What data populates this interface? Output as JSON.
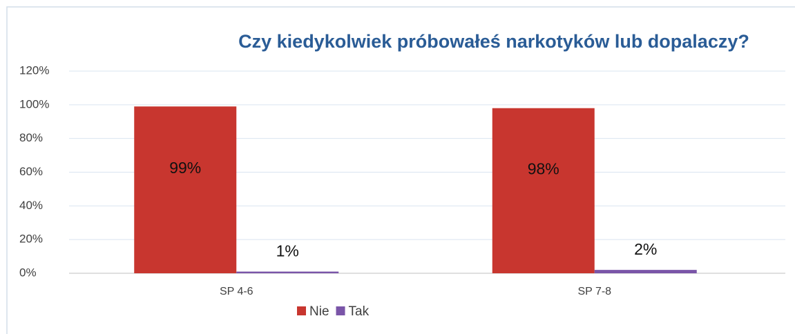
{
  "chart_data": {
    "type": "bar",
    "title": "Czy kiedykolwiek próbowałeś narkotyków lub dopalaczy?",
    "categories": [
      "SP 4-6",
      "SP 7-8"
    ],
    "series": [
      {
        "name": "Nie",
        "color": "#c8362f",
        "values": [
          99,
          98
        ],
        "value_labels": [
          "99%",
          "98%"
        ]
      },
      {
        "name": "Tak",
        "color": "#7a55a8",
        "values": [
          1,
          2
        ],
        "value_labels": [
          "1%",
          "2%"
        ]
      }
    ],
    "ylim": [
      0,
      120
    ],
    "yticks": [
      {
        "value": 0,
        "label": "0%"
      },
      {
        "value": 20,
        "label": "20%"
      },
      {
        "value": 40,
        "label": "40%"
      },
      {
        "value": 60,
        "label": "60%"
      },
      {
        "value": 80,
        "label": "80%"
      },
      {
        "value": 100,
        "label": "100%"
      },
      {
        "value": 120,
        "label": "120%"
      }
    ],
    "grid": true,
    "legend": "bottom"
  }
}
